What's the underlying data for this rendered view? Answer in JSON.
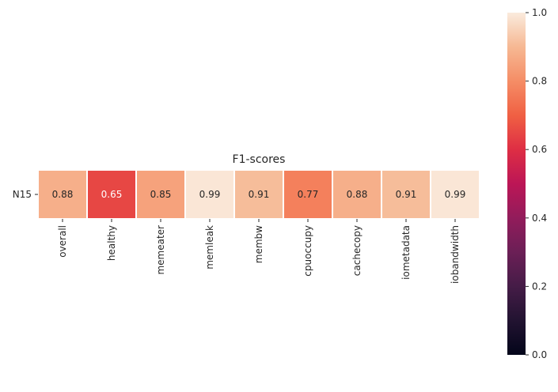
{
  "chart_data": {
    "type": "heatmap",
    "title": "F1-scores",
    "rows": [
      "N15"
    ],
    "columns": [
      "overall",
      "healthy",
      "memeater",
      "memleak",
      "membw",
      "cpuoccupy",
      "cachecopy",
      "iometadata",
      "iobandwidth"
    ],
    "values": [
      [
        0.88,
        0.65,
        0.85,
        0.99,
        0.91,
        0.77,
        0.88,
        0.91,
        0.99
      ]
    ],
    "annotations": [
      [
        "0.88",
        "0.65",
        "0.85",
        "0.99",
        "0.91",
        "0.77",
        "0.88",
        "0.91",
        "0.99"
      ]
    ],
    "vmin": 0.0,
    "vmax": 1.0,
    "colormap": "rocket",
    "colorbar": {
      "ticks": [
        0.0,
        0.2,
        0.4,
        0.6,
        0.8,
        1.0
      ],
      "tick_labels": [
        "0.0",
        "0.2",
        "0.4",
        "0.6",
        "0.8",
        "1.0"
      ]
    }
  }
}
